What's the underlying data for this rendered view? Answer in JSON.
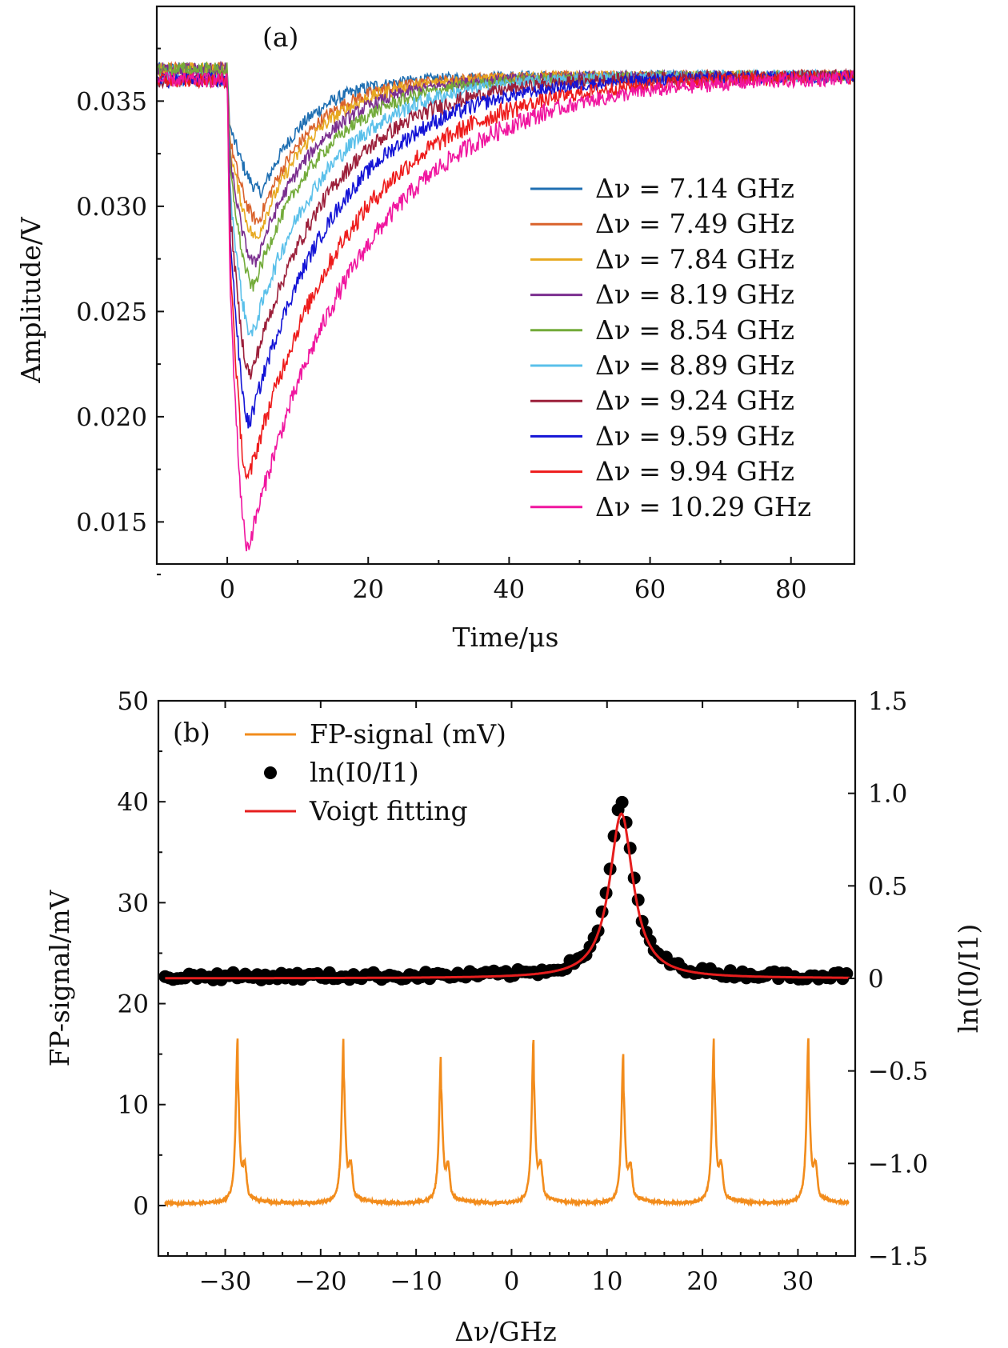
{
  "chart_data": [
    {
      "panel": "(a)",
      "type": "line",
      "xlabel": "Time/μs",
      "ylabel": "Amplitude/V",
      "xlim": [
        -10,
        89
      ],
      "ylim": [
        0.013,
        0.0395
      ],
      "xticks": [
        "0",
        "20",
        "40",
        "60",
        "80"
      ],
      "yticks": [
        "0.015",
        "0.020",
        "0.025",
        "0.030",
        "0.035"
      ],
      "legend_position": "right",
      "baseline": 0.0362,
      "series": [
        {
          "name": "Δν = 7.14 GHz",
          "color": "#1f6fb2",
          "min": 0.0307,
          "t_min": 5.0,
          "t_recover": 22,
          "noise": 0.0005
        },
        {
          "name": "Δν = 7.49 GHz",
          "color": "#d9622b",
          "min": 0.0293,
          "t_min": 4.5,
          "t_recover": 24,
          "noise": 0.0005
        },
        {
          "name": "Δν = 7.84 GHz",
          "color": "#e7a921",
          "min": 0.0285,
          "t_min": 4.3,
          "t_recover": 25,
          "noise": 0.0005
        },
        {
          "name": "Δν = 8.19 GHz",
          "color": "#7b2f8f",
          "min": 0.0273,
          "t_min": 4.0,
          "t_recover": 27,
          "noise": 0.0005
        },
        {
          "name": "Δν = 8.54 GHz",
          "color": "#73ab3a",
          "min": 0.0262,
          "t_min": 3.8,
          "t_recover": 29,
          "noise": 0.0005
        },
        {
          "name": "Δν = 8.89 GHz",
          "color": "#5ac0ea",
          "min": 0.0239,
          "t_min": 3.6,
          "t_recover": 31,
          "noise": 0.0006
        },
        {
          "name": "Δν = 9.24 GHz",
          "color": "#9c1f3a",
          "min": 0.022,
          "t_min": 3.4,
          "t_recover": 34,
          "noise": 0.0006
        },
        {
          "name": "Δν = 9.59 GHz",
          "color": "#1414d6",
          "min": 0.0197,
          "t_min": 3.2,
          "t_recover": 37,
          "noise": 0.0006
        },
        {
          "name": "Δν = 9.94 GHz",
          "color": "#ee1b1b",
          "min": 0.017,
          "t_min": 3.0,
          "t_recover": 42,
          "noise": 0.0007
        },
        {
          "name": "Δν = 10.29 GHz",
          "color": "#f0169f",
          "min": 0.0138,
          "t_min": 3.0,
          "t_recover": 46,
          "noise": 0.0007
        }
      ]
    },
    {
      "panel": "(b)",
      "type": "line",
      "xlabel": "Δν/GHz",
      "ylabel_left": "FP-signal/mV",
      "ylabel_right": "ln(I0/I1)",
      "xlim": [
        -37,
        36
      ],
      "ylim_left": [
        -5,
        50
      ],
      "ylim_right": [
        -1.5,
        1.5
      ],
      "xticks": [
        "−30",
        "−20",
        "−10",
        "0",
        "10",
        "20",
        "30"
      ],
      "yticks_left": [
        "0",
        "10",
        "20",
        "30",
        "40",
        "50"
      ],
      "yticks_right": [
        "−1.5",
        "−1.0",
        "−0.5",
        "0",
        "0.5",
        "1.0",
        "1.5"
      ],
      "legend_position": "top-left",
      "series": [
        {
          "name": "FP-signal (mV)",
          "color": "#f28c1c",
          "axis": "left",
          "peaks_x": [
            -28.7,
            -17.6,
            -7.4,
            2.3,
            11.7,
            21.2,
            31.1
          ],
          "peaks_y": [
            16.3,
            16.5,
            14.7,
            16.3,
            14.8,
            16.4,
            16.4
          ],
          "baseline": 0.2
        },
        {
          "name": "ln(I0/I1)",
          "color": "#000000",
          "axis": "right",
          "marker": "circle",
          "center": 11.5,
          "peak": 0.94,
          "hwhm": 1.5
        },
        {
          "name": "Voigt fitting",
          "color": "#e61e1e",
          "axis": "right",
          "center": 11.5,
          "peak": 0.89,
          "hwhm": 1.5
        }
      ]
    }
  ]
}
